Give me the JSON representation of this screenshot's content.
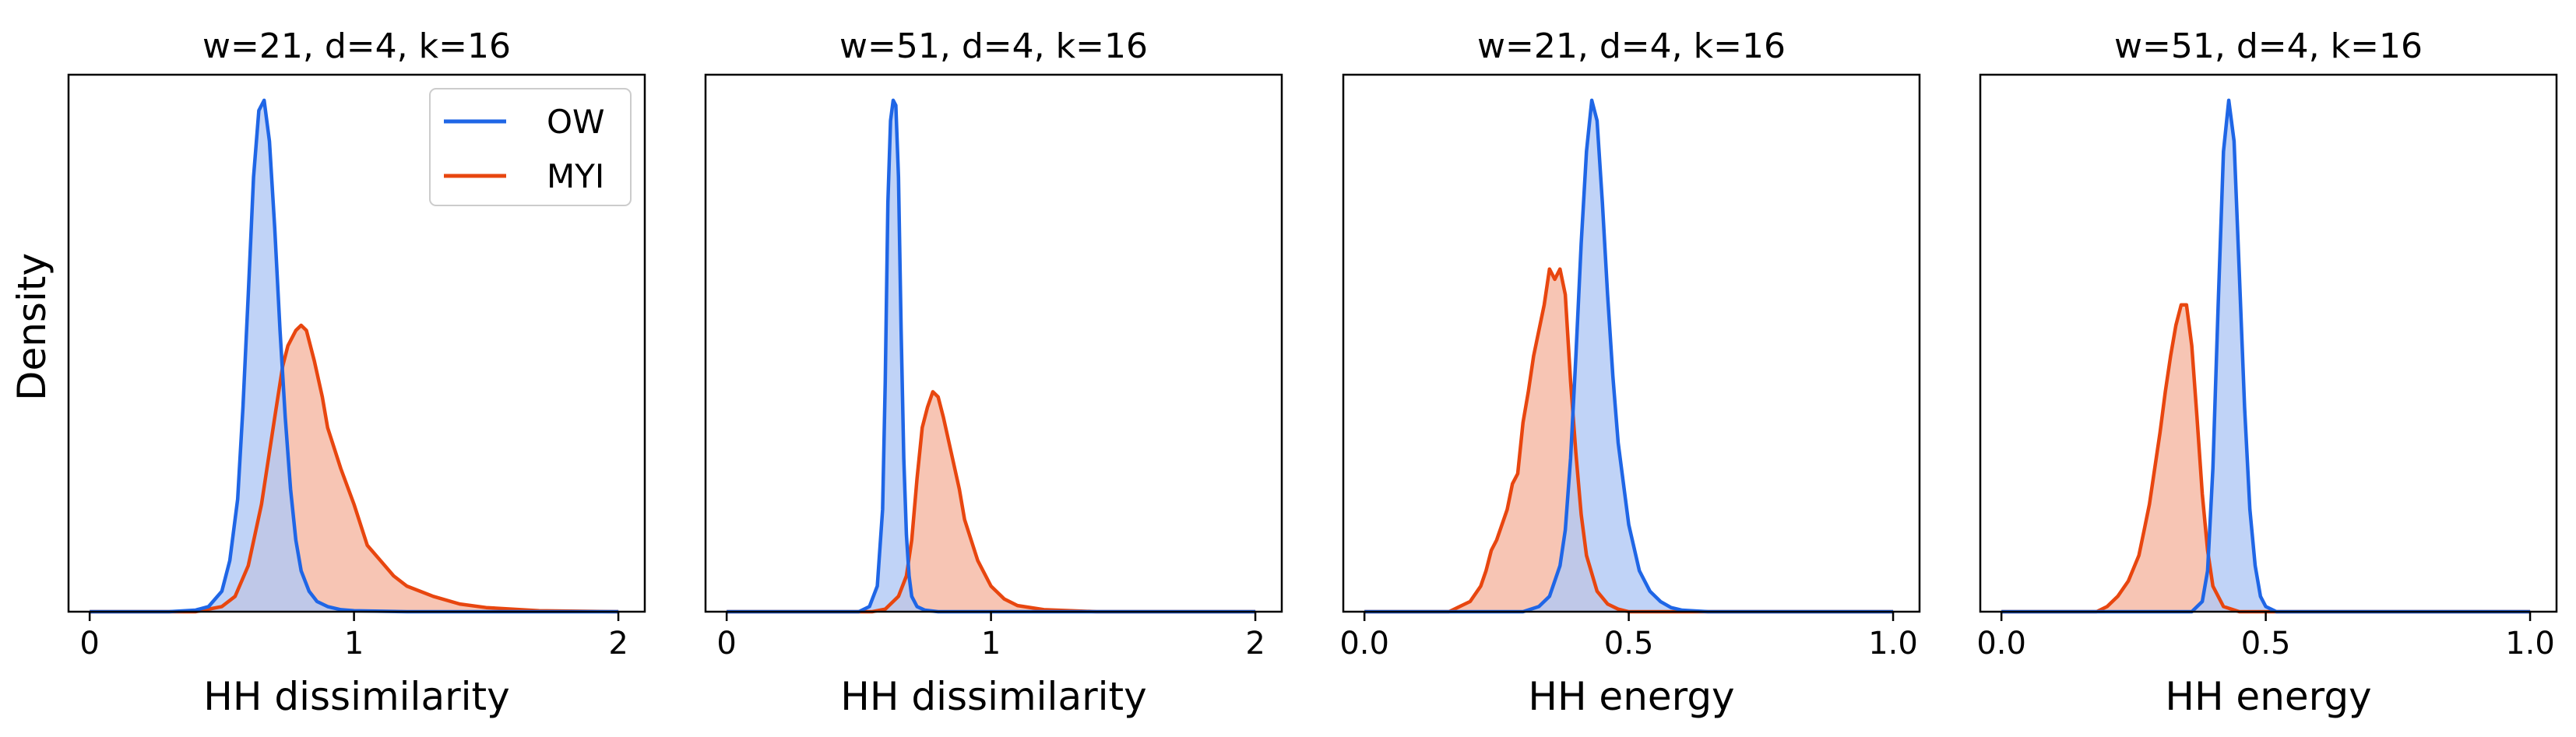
{
  "figure": {
    "ylabel": "Density"
  },
  "legend": {
    "entries": [
      "OW",
      "MYI"
    ]
  },
  "colors": {
    "ow_line": "#1f66e6",
    "ow_fill": "#b0c8f5",
    "myi_line": "#e8460f",
    "myi_fill": "#f5b7a1"
  },
  "chart_data": [
    {
      "type": "area",
      "title": "w=21, d=4, k=16",
      "xlabel": "HH dissimilarity",
      "ylabel": "Density",
      "xlim": [
        -0.08,
        2.1
      ],
      "ylim": [
        0,
        1.05
      ],
      "xticks": [
        0,
        1,
        2
      ],
      "xticklabels": [
        "0",
        "1",
        "2"
      ],
      "legend": "top-right",
      "series": [
        {
          "name": "OW",
          "x": [
            0,
            0.3,
            0.4,
            0.45,
            0.5,
            0.53,
            0.56,
            0.58,
            0.6,
            0.62,
            0.64,
            0.66,
            0.68,
            0.7,
            0.72,
            0.74,
            0.76,
            0.78,
            0.8,
            0.83,
            0.86,
            0.9,
            0.95,
            1.0,
            1.2,
            2.0
          ],
          "y": [
            0,
            0,
            0.003,
            0.01,
            0.04,
            0.1,
            0.22,
            0.4,
            0.62,
            0.85,
            0.98,
            1.0,
            0.92,
            0.75,
            0.55,
            0.38,
            0.24,
            0.14,
            0.08,
            0.04,
            0.02,
            0.01,
            0.004,
            0.002,
            0,
            0
          ]
        },
        {
          "name": "MYI",
          "x": [
            0,
            0.4,
            0.5,
            0.55,
            0.6,
            0.65,
            0.7,
            0.73,
            0.75,
            0.78,
            0.8,
            0.82,
            0.85,
            0.88,
            0.9,
            0.95,
            1.0,
            1.05,
            1.1,
            1.15,
            1.2,
            1.3,
            1.4,
            1.5,
            1.7,
            2.0
          ],
          "y": [
            0,
            0,
            0.01,
            0.03,
            0.09,
            0.21,
            0.38,
            0.48,
            0.52,
            0.55,
            0.56,
            0.55,
            0.49,
            0.42,
            0.36,
            0.28,
            0.21,
            0.13,
            0.1,
            0.07,
            0.05,
            0.03,
            0.015,
            0.008,
            0.002,
            0
          ]
        }
      ]
    },
    {
      "type": "area",
      "title": "w=51, d=4, k=16",
      "xlabel": "HH dissimilarity",
      "ylabel": "",
      "xlim": [
        -0.08,
        2.1
      ],
      "ylim": [
        0,
        1.05
      ],
      "xticks": [
        0,
        1,
        2
      ],
      "xticklabels": [
        "0",
        "1",
        "2"
      ],
      "series": [
        {
          "name": "OW",
          "x": [
            0,
            0.5,
            0.54,
            0.57,
            0.59,
            0.6,
            0.61,
            0.62,
            0.63,
            0.64,
            0.65,
            0.66,
            0.67,
            0.68,
            0.69,
            0.7,
            0.72,
            0.75,
            0.8,
            2.0
          ],
          "y": [
            0,
            0,
            0.01,
            0.05,
            0.2,
            0.45,
            0.8,
            0.96,
            1.0,
            0.99,
            0.85,
            0.55,
            0.3,
            0.15,
            0.07,
            0.03,
            0.01,
            0.003,
            0,
            0
          ]
        },
        {
          "name": "MYI",
          "x": [
            0,
            0.55,
            0.6,
            0.65,
            0.68,
            0.7,
            0.72,
            0.74,
            0.76,
            0.78,
            0.8,
            0.82,
            0.85,
            0.88,
            0.9,
            0.95,
            1.0,
            1.05,
            1.1,
            1.2,
            1.4,
            2.0
          ],
          "y": [
            0,
            0,
            0.005,
            0.03,
            0.07,
            0.14,
            0.26,
            0.36,
            0.4,
            0.43,
            0.42,
            0.38,
            0.31,
            0.24,
            0.18,
            0.1,
            0.05,
            0.025,
            0.012,
            0.004,
            0,
            0
          ]
        }
      ]
    },
    {
      "type": "area",
      "title": "w=21, d=4, k=16",
      "xlabel": "HH energy",
      "ylabel": "",
      "xlim": [
        -0.04,
        1.05
      ],
      "ylim": [
        0,
        1.05
      ],
      "xticks": [
        0.0,
        0.5,
        1.0
      ],
      "xticklabels": [
        "0.0",
        "0.5",
        "1.0"
      ],
      "series": [
        {
          "name": "OW",
          "x": [
            0,
            0.3,
            0.33,
            0.35,
            0.37,
            0.38,
            0.39,
            0.4,
            0.41,
            0.42,
            0.43,
            0.44,
            0.45,
            0.46,
            0.47,
            0.48,
            0.5,
            0.52,
            0.54,
            0.56,
            0.58,
            0.6,
            0.65,
            1.0
          ],
          "y": [
            0,
            0,
            0.01,
            0.03,
            0.09,
            0.16,
            0.3,
            0.5,
            0.72,
            0.9,
            1.0,
            0.96,
            0.8,
            0.62,
            0.46,
            0.33,
            0.17,
            0.08,
            0.04,
            0.02,
            0.008,
            0.003,
            0,
            0
          ]
        },
        {
          "name": "MYI",
          "x": [
            0,
            0.16,
            0.18,
            0.2,
            0.22,
            0.23,
            0.24,
            0.25,
            0.27,
            0.28,
            0.29,
            0.3,
            0.31,
            0.32,
            0.33,
            0.34,
            0.35,
            0.36,
            0.37,
            0.38,
            0.39,
            0.4,
            0.41,
            0.42,
            0.44,
            0.46,
            0.48,
            0.5,
            1.0
          ],
          "y": [
            0,
            0,
            0.01,
            0.02,
            0.05,
            0.08,
            0.12,
            0.14,
            0.2,
            0.25,
            0.27,
            0.37,
            0.43,
            0.5,
            0.55,
            0.6,
            0.67,
            0.65,
            0.67,
            0.62,
            0.45,
            0.31,
            0.19,
            0.11,
            0.04,
            0.015,
            0.005,
            0,
            0
          ]
        }
      ]
    },
    {
      "type": "area",
      "title": "w=51, d=4, k=16",
      "xlabel": "HH energy",
      "ylabel": "",
      "xlim": [
        -0.04,
        1.05
      ],
      "ylim": [
        0,
        1.05
      ],
      "xticks": [
        0.0,
        0.5,
        1.0
      ],
      "xticklabels": [
        "0.0",
        "0.5",
        "1.0"
      ],
      "series": [
        {
          "name": "OW",
          "x": [
            0,
            0.36,
            0.38,
            0.39,
            0.4,
            0.41,
            0.42,
            0.43,
            0.44,
            0.45,
            0.46,
            0.47,
            0.48,
            0.49,
            0.5,
            0.52,
            1.0
          ],
          "y": [
            0,
            0,
            0.02,
            0.08,
            0.28,
            0.6,
            0.9,
            1.0,
            0.92,
            0.66,
            0.4,
            0.2,
            0.09,
            0.03,
            0.01,
            0,
            0
          ]
        },
        {
          "name": "MYI",
          "x": [
            0,
            0.18,
            0.2,
            0.22,
            0.24,
            0.26,
            0.27,
            0.28,
            0.29,
            0.3,
            0.31,
            0.32,
            0.33,
            0.34,
            0.35,
            0.36,
            0.37,
            0.38,
            0.39,
            0.4,
            0.42,
            0.45,
            1.0
          ],
          "y": [
            0,
            0,
            0.01,
            0.03,
            0.06,
            0.11,
            0.16,
            0.21,
            0.28,
            0.35,
            0.43,
            0.5,
            0.56,
            0.6,
            0.6,
            0.52,
            0.38,
            0.23,
            0.12,
            0.05,
            0.01,
            0,
            0
          ]
        }
      ]
    }
  ]
}
